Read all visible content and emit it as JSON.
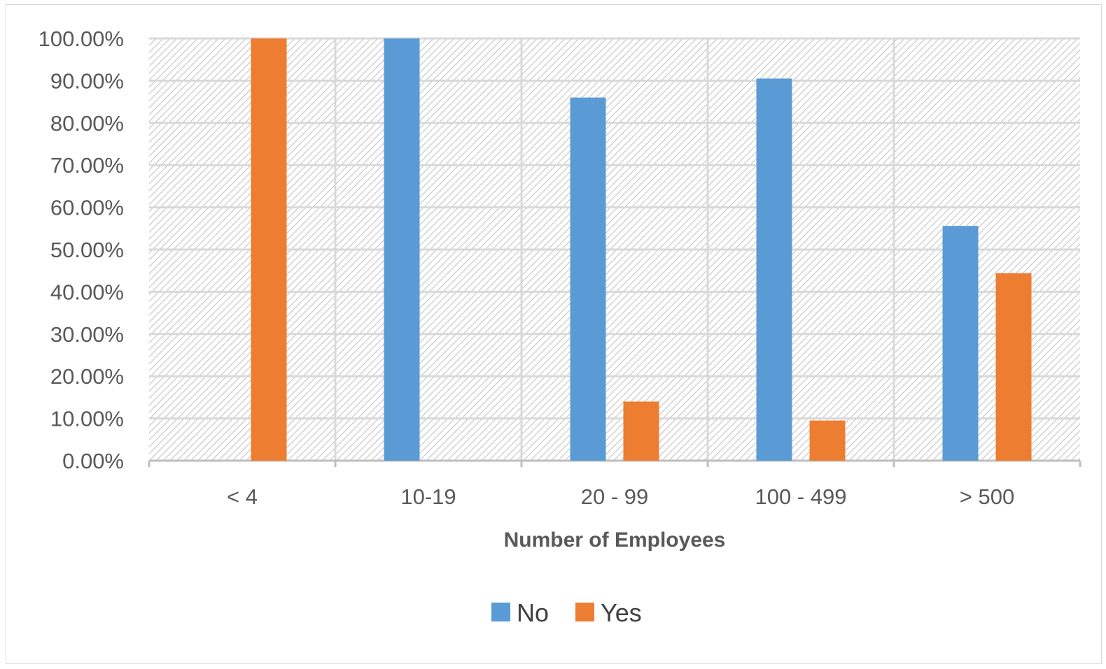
{
  "chart_data": {
    "type": "bar",
    "title": "",
    "xlabel": "Number of Employees",
    "ylabel": "",
    "categories": [
      "< 4",
      "10-19",
      "20 - 99",
      "100 - 499",
      "> 500"
    ],
    "series": [
      {
        "name": "No",
        "color": "#5b9bd5",
        "values": [
          0,
          100,
          86,
          90.5,
          55.6
        ]
      },
      {
        "name": "Yes",
        "color": "#ed7d31",
        "values": [
          100,
          0,
          14,
          9.5,
          44.4
        ]
      }
    ],
    "ylim": [
      0,
      100
    ],
    "yticks": [
      0,
      10,
      20,
      30,
      40,
      50,
      60,
      70,
      80,
      90,
      100
    ],
    "ytick_labels": [
      "0.00%",
      "10.00%",
      "20.00%",
      "30.00%",
      "40.00%",
      "50.00%",
      "60.00%",
      "70.00%",
      "80.00%",
      "90.00%",
      "100.00%"
    ],
    "grid": true,
    "plot_background": "hatched",
    "legend_position": "bottom"
  }
}
